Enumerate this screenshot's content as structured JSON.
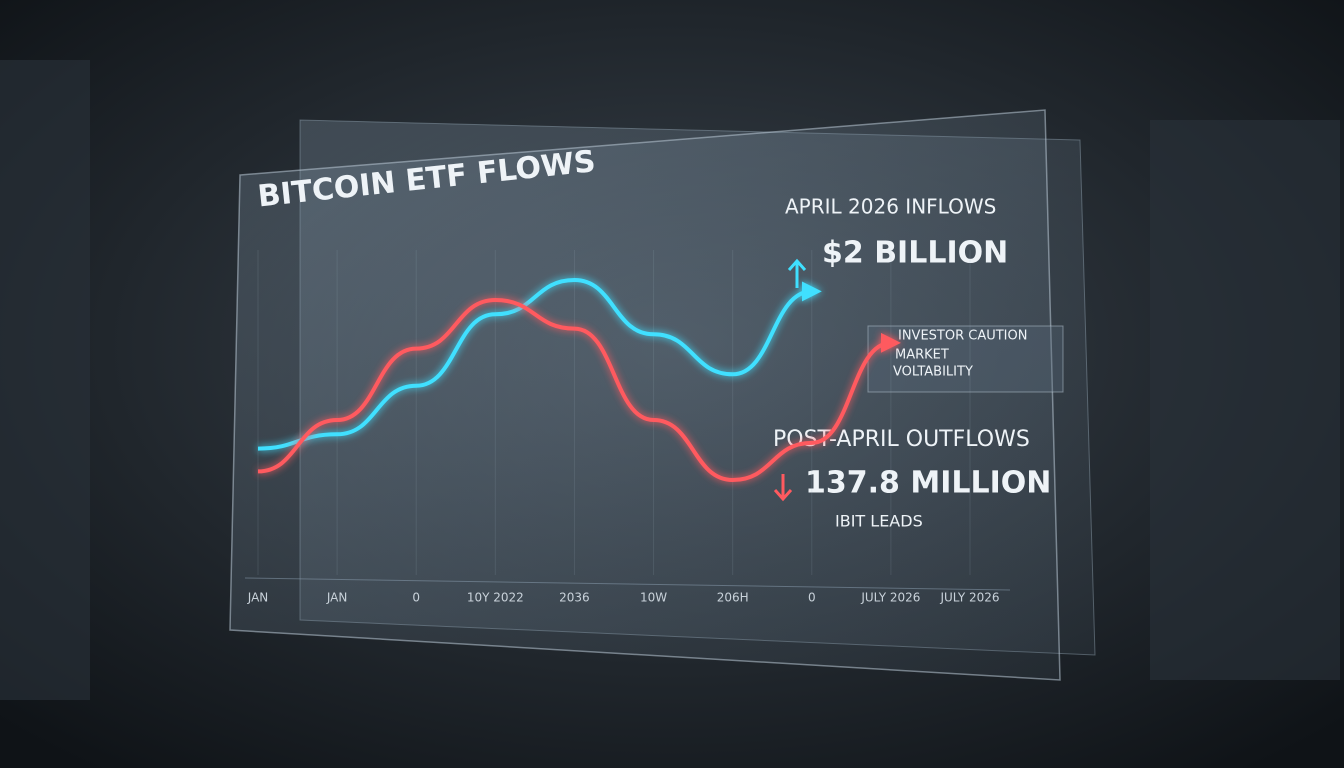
{
  "chart_data": {
    "type": "line",
    "title": "BITCOIN ETF FLOWS",
    "categories": [
      "JAN",
      "JAN",
      "0",
      "10Y 2022",
      "2036",
      "10W",
      "206H",
      "0",
      "JULY 2026",
      "JULY 2026"
    ],
    "series": [
      {
        "color": "#3fe0ff",
        "values": [
          20,
          25,
          42,
          67,
          79,
          60,
          46,
          75,
          null,
          null
        ]
      },
      {
        "color": "#ff5a5f",
        "values": [
          12,
          30,
          55,
          72,
          62,
          30,
          9,
          22,
          57,
          null
        ]
      }
    ],
    "annotations": {
      "inflow_label": "APRIL 2026 INFLOWS",
      "inflow_value": "$2 BILLION",
      "outflow_label": "POST-APRIL OUTFLOWS",
      "outflow_value": "137.8 MILLION",
      "outflow_note": "IBIT LEADS",
      "side_note": [
        "INVESTOR CAUTION",
        "MARKET",
        "VOLTABILITY"
      ]
    }
  }
}
